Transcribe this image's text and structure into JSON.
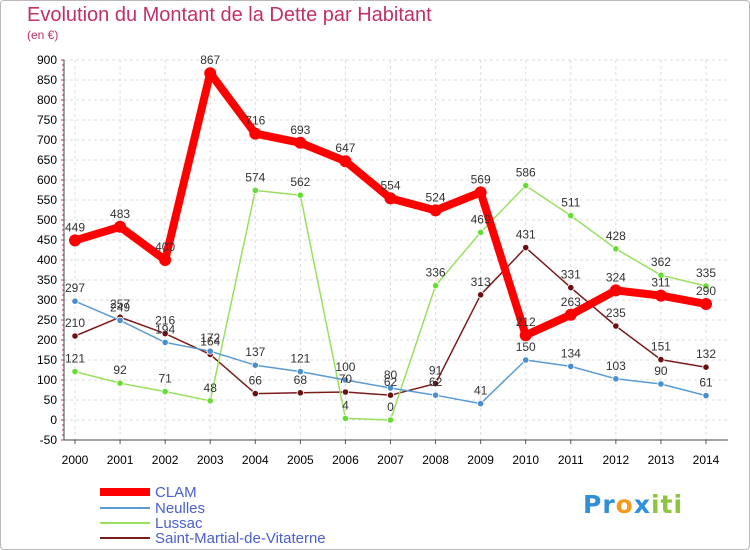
{
  "chart_data": {
    "type": "line",
    "title": "Evolution du Montant de la Dette par Habitant",
    "subtitle": "(en €)",
    "x": [
      "2000",
      "2001",
      "2002",
      "2003",
      "2004",
      "2005",
      "2006",
      "2007",
      "2008",
      "2009",
      "2010",
      "2011",
      "2012",
      "2013",
      "2014"
    ],
    "y_ticks": [
      "-50",
      "0",
      "50",
      "100",
      "150",
      "200",
      "250",
      "300",
      "350",
      "400",
      "450",
      "500",
      "550",
      "600",
      "650",
      "700",
      "750",
      "800",
      "850",
      "900"
    ],
    "ylim": [
      -50,
      900
    ],
    "grid": true,
    "legend_position": "bottom-left",
    "series": [
      {
        "name": "CLAM",
        "color": "#ff0000",
        "values": [
          449,
          483,
          400,
          867,
          716,
          693,
          647,
          554,
          524,
          569,
          212,
          263,
          324,
          311,
          290
        ]
      },
      {
        "name": "Neulles",
        "color": "#5a9bd4",
        "values": [
          297,
          249,
          194,
          172,
          137,
          121,
          100,
          80,
          62,
          41,
          150,
          134,
          103,
          90,
          61
        ]
      },
      {
        "name": "Lussac",
        "color": "#99e05e",
        "values": [
          121,
          92,
          71,
          48,
          574,
          562,
          4,
          0,
          336,
          469,
          586,
          511,
          428,
          362,
          335
        ]
      },
      {
        "name": "Saint-Martial-de-Vitaterne",
        "color": "#7a1c1c",
        "values": [
          210,
          257,
          216,
          164,
          66,
          68,
          70,
          62,
          91,
          313,
          431,
          331,
          235,
          151,
          132
        ]
      }
    ]
  },
  "logo": {
    "p1": "Pr",
    "p2": "o",
    "p3": "x",
    "p4": "iti"
  }
}
